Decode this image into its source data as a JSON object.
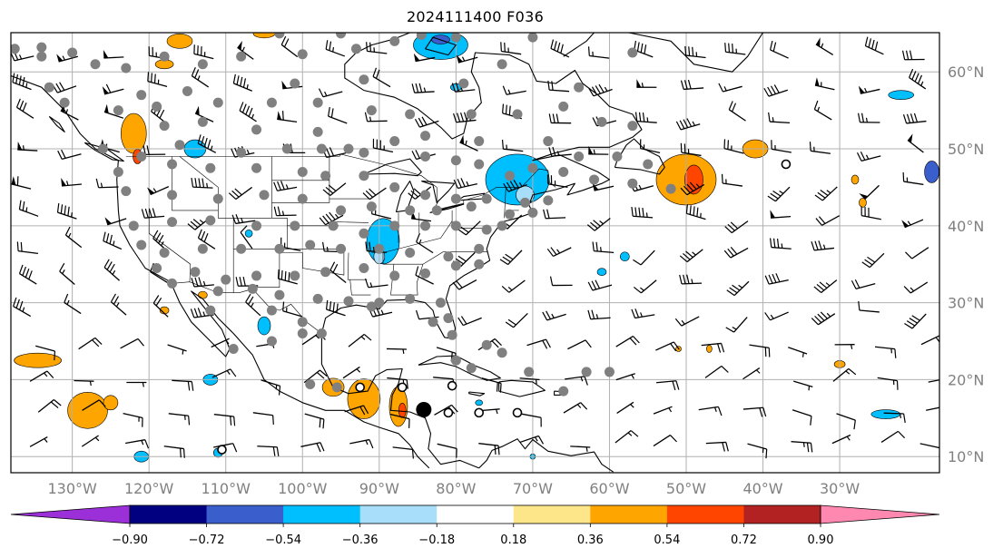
{
  "title": "2024111400 F036",
  "map": {
    "lon_range": [
      -138,
      -17
    ],
    "lat_range": [
      7.9,
      65.1
    ],
    "lat_labels": [
      "10°N",
      "20°N",
      "30°N",
      "40°N",
      "50°N",
      "60°N"
    ],
    "lat_values": [
      10,
      20,
      30,
      40,
      50,
      60
    ],
    "lon_labels": [
      "130°W",
      "120°W",
      "110°W",
      "100°W",
      "90°W",
      "80°W",
      "70°W",
      "60°W",
      "50°W",
      "40°W",
      "30°W"
    ],
    "lon_values": [
      -130,
      -120,
      -110,
      -100,
      -90,
      -80,
      -70,
      -60,
      -50,
      -40,
      -30
    ],
    "station_color": "#808080",
    "coastline_color": "#000000",
    "grid_color": "#b0b0b0"
  },
  "colorbar": {
    "labels": [
      "−0.90",
      "−0.72",
      "−0.54",
      "−0.36",
      "−0.18",
      "0.18",
      "0.36",
      "0.54",
      "0.72",
      "0.90"
    ],
    "colors": [
      "#9b30d8",
      "#000080",
      "#3a5fcd",
      "#00bfff",
      "#a8defa",
      "#ffffff",
      "#fde68a",
      "#ffa500",
      "#ff4500",
      "#b22222",
      "#ff88b0"
    ]
  }
}
